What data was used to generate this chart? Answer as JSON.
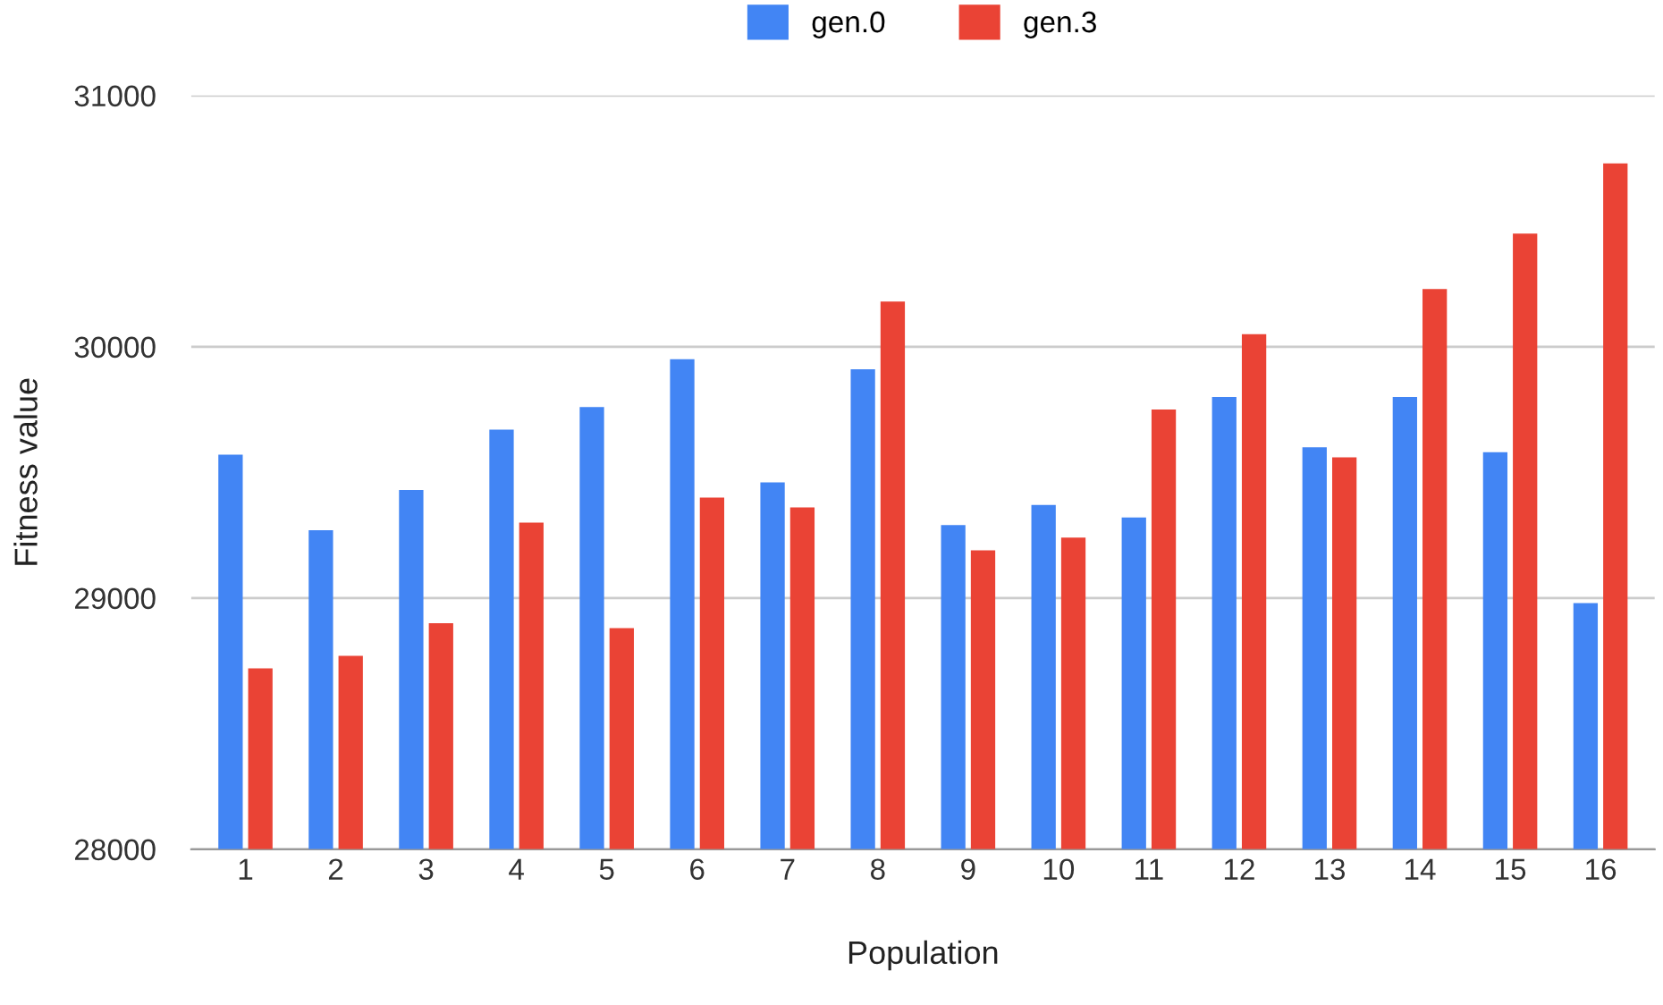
{
  "chart_data": {
    "type": "bar",
    "xlabel": "Population",
    "ylabel": "Fitness value",
    "categories": [
      "1",
      "2",
      "3",
      "4",
      "5",
      "6",
      "7",
      "8",
      "9",
      "10",
      "11",
      "12",
      "13",
      "14",
      "15",
      "16"
    ],
    "series": [
      {
        "name": "gen.0",
        "color": "#4285f4",
        "values": [
          29570,
          29270,
          29430,
          29670,
          29760,
          29950,
          29460,
          29910,
          29290,
          29370,
          29320,
          29800,
          29600,
          29800,
          29580,
          28980
        ]
      },
      {
        "name": "gen.3",
        "color": "#ea4335",
        "values": [
          28720,
          28770,
          28900,
          29300,
          28880,
          29400,
          29360,
          30180,
          29190,
          29240,
          29750,
          30050,
          29560,
          30230,
          30450,
          30730
        ]
      }
    ],
    "ylim": [
      28000,
      31000
    ],
    "yticks": [
      28000,
      29000,
      30000,
      31000
    ],
    "grid": "y",
    "legend": "top"
  }
}
